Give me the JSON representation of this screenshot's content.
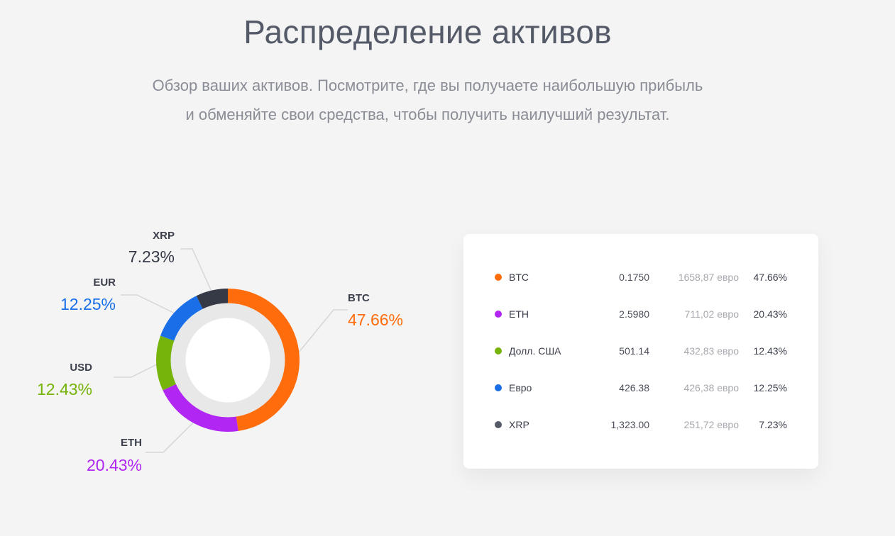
{
  "header": {
    "title": "Распределение активов",
    "subtitle_line1": "Обзор ваших активов. Посмотрите, где вы получаете наибольшую прибыль",
    "subtitle_line2": "и обменяйте свои средства, чтобы получить наилучший результат."
  },
  "chart_data": {
    "type": "pie",
    "donut": true,
    "categories": [
      "BTC",
      "ETH",
      "USD",
      "EUR",
      "XRP"
    ],
    "values": [
      47.66,
      20.43,
      12.43,
      12.25,
      7.23
    ],
    "labels": [
      "47.66%",
      "20.43%",
      "12.43%",
      "12.25%",
      "7.23%"
    ],
    "colors": [
      "#ff6c0c",
      "#b126f2",
      "#76b30b",
      "#1a6fe8",
      "#363a47"
    ],
    "start_angle_deg": 0,
    "direction": "clockwise"
  },
  "callouts": [
    {
      "name": "BTC",
      "pct": "47.66%",
      "color": "#ff6c0c"
    },
    {
      "name": "ETH",
      "pct": "20.43%",
      "color": "#b126f2"
    },
    {
      "name": "USD",
      "pct": "12.43%",
      "color": "#76b30b"
    },
    {
      "name": "EUR",
      "pct": "12.25%",
      "color": "#1a6fe8"
    },
    {
      "name": "XRP",
      "pct": "7.23%",
      "color": "#363a47"
    }
  ],
  "table": {
    "rows": [
      {
        "name": "BTC",
        "qty": "0.1750",
        "value": "1658,87 евро",
        "pct": "47.66%",
        "color": "#ff6c0c"
      },
      {
        "name": "ETH",
        "qty": "2.5980",
        "value": "711,02 евро",
        "pct": "20.43%",
        "color": "#b126f2"
      },
      {
        "name": "Долл. США",
        "qty": "501.14",
        "value": "432,83 евро",
        "pct": "12.43%",
        "color": "#76b30b"
      },
      {
        "name": "Евро",
        "qty": "426.38",
        "value": "426,38 евро",
        "pct": "12.25%",
        "color": "#1a6fe8"
      },
      {
        "name": "XRP",
        "qty": "1,323.00",
        "value": "251,72 евро",
        "pct": "7.23%",
        "color": "#555a68"
      }
    ]
  }
}
